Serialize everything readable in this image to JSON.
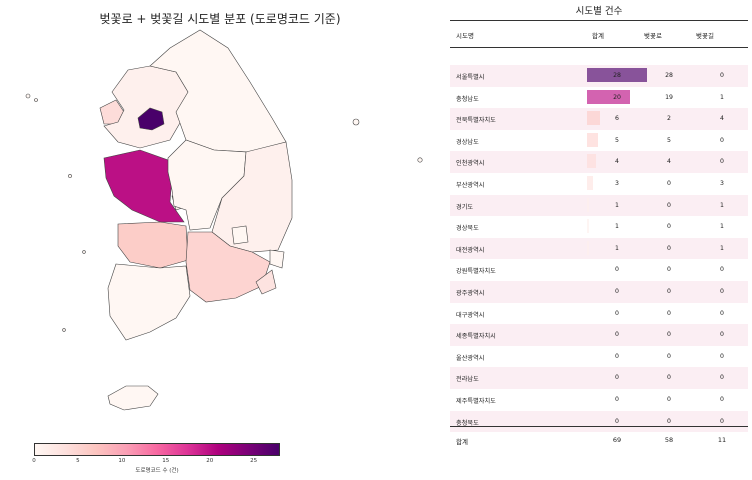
{
  "chart_data": [
    {
      "type": "choropleth",
      "title": "벚꽃로 + 벚꽃길 시도별 분포 (도로명코드 기준)",
      "colorbar": {
        "label": "도로명코드 수 (건)",
        "ticks": [
          0,
          5,
          10,
          15,
          20,
          25
        ],
        "range": [
          0,
          28
        ]
      },
      "regions": [
        {
          "name": "서울특별시",
          "value": 28
        },
        {
          "name": "충청남도",
          "value": 20
        },
        {
          "name": "전북특별자치도",
          "value": 6
        },
        {
          "name": "경상남도",
          "value": 5
        },
        {
          "name": "인천광역시",
          "value": 4
        },
        {
          "name": "부산광역시",
          "value": 3
        },
        {
          "name": "경기도",
          "value": 1
        },
        {
          "name": "경상북도",
          "value": 1
        },
        {
          "name": "대전광역시",
          "value": 1
        },
        {
          "name": "강원특별자치도",
          "value": 0
        },
        {
          "name": "광주광역시",
          "value": 0
        },
        {
          "name": "대구광역시",
          "value": 0
        },
        {
          "name": "세종특별자치시",
          "value": 0
        },
        {
          "name": "울산광역시",
          "value": 0
        },
        {
          "name": "전라남도",
          "value": 0
        },
        {
          "name": "제주특별자치도",
          "value": 0
        },
        {
          "name": "충청북도",
          "value": 0
        }
      ]
    },
    {
      "type": "table",
      "title": "시도별 건수",
      "columns": [
        "시도명",
        "합계",
        "벚꽃로",
        "벚꽃길"
      ],
      "rows": [
        {
          "name": "서울특별시",
          "total": 28,
          "road": 28,
          "gil": 0
        },
        {
          "name": "충청남도",
          "total": 20,
          "road": 19,
          "gil": 1
        },
        {
          "name": "전북특별자치도",
          "total": 6,
          "road": 2,
          "gil": 4
        },
        {
          "name": "경상남도",
          "total": 5,
          "road": 5,
          "gil": 0
        },
        {
          "name": "인천광역시",
          "total": 4,
          "road": 4,
          "gil": 0
        },
        {
          "name": "부산광역시",
          "total": 3,
          "road": 0,
          "gil": 3
        },
        {
          "name": "경기도",
          "total": 1,
          "road": 0,
          "gil": 1
        },
        {
          "name": "경상북도",
          "total": 1,
          "road": 0,
          "gil": 1
        },
        {
          "name": "대전광역시",
          "total": 1,
          "road": 0,
          "gil": 1
        },
        {
          "name": "강원특별자치도",
          "total": 0,
          "road": 0,
          "gil": 0
        },
        {
          "name": "광주광역시",
          "total": 0,
          "road": 0,
          "gil": 0
        },
        {
          "name": "대구광역시",
          "total": 0,
          "road": 0,
          "gil": 0
        },
        {
          "name": "세종특별자치시",
          "total": 0,
          "road": 0,
          "gil": 0
        },
        {
          "name": "울산광역시",
          "total": 0,
          "road": 0,
          "gil": 0
        },
        {
          "name": "전라남도",
          "total": 0,
          "road": 0,
          "gil": 0
        },
        {
          "name": "제주특별자치도",
          "total": 0,
          "road": 0,
          "gil": 0
        },
        {
          "name": "충청북도",
          "total": 0,
          "road": 0,
          "gil": 0
        }
      ],
      "footer": {
        "label": "합계",
        "total": 69,
        "road": 58,
        "gil": 11
      }
    }
  ]
}
